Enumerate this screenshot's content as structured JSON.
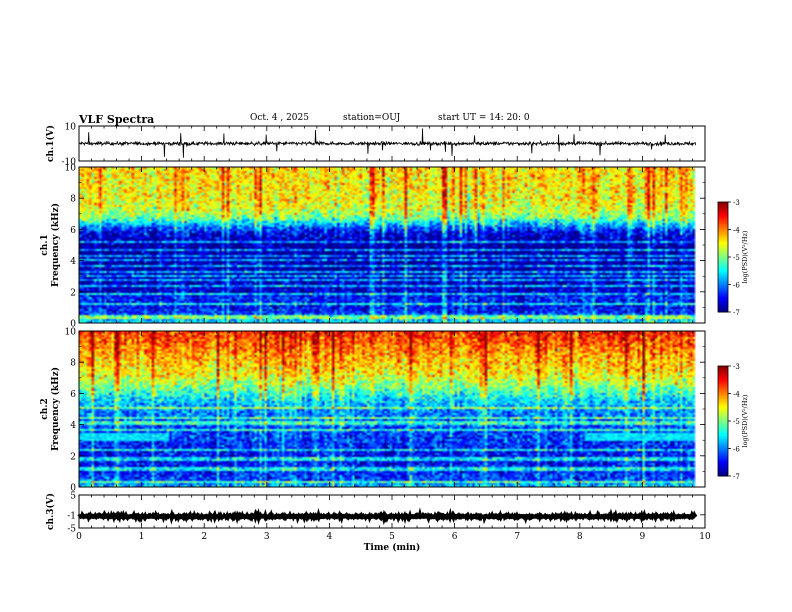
{
  "header": {
    "title": "VLF Spectra",
    "date": "Oct. 4 , 2025",
    "station": "station=OUJ",
    "start_ut": "start UT =  14: 20: 0"
  },
  "chart_data": [
    {
      "type": "line",
      "panel": "ch1-waveform",
      "ylabel": "ch.1(V)",
      "ylim": [
        -10,
        10
      ],
      "yticks": [
        "10",
        "-10"
      ],
      "xlim": [
        0,
        10
      ],
      "trace_mean": 0,
      "trace_noise_amplitude": 1.0,
      "trace_end": 9.85
    },
    {
      "type": "heatmap",
      "panel": "ch1-spectrogram",
      "ylabel": "ch.1 Frequency (kHz)",
      "ylim": [
        0,
        10
      ],
      "yticks": [
        "0",
        "2",
        "4",
        "6",
        "8",
        "10"
      ],
      "xlim": [
        0,
        10
      ],
      "data_end": 9.85,
      "colorbar": {
        "label": "log(PSD)(V²/Hz)",
        "ticks": [
          "-3",
          "-4",
          "-5",
          "-6",
          "-7"
        ],
        "range": [
          -7,
          -3
        ]
      },
      "spectral_profile": [
        {
          "f": 0.0,
          "v": -5.6
        },
        {
          "f": 0.3,
          "v": -5.8
        },
        {
          "f": 0.6,
          "v": -6.3
        },
        {
          "f": 1.0,
          "v": -6.5
        },
        {
          "f": 1.6,
          "v": -6.4
        },
        {
          "f": 2.0,
          "v": -6.7
        },
        {
          "f": 3.0,
          "v": -6.8
        },
        {
          "f": 4.0,
          "v": -6.9
        },
        {
          "f": 5.0,
          "v": -6.9
        },
        {
          "f": 5.8,
          "v": -6.6
        },
        {
          "f": 6.3,
          "v": -5.8
        },
        {
          "f": 6.8,
          "v": -5.0
        },
        {
          "f": 7.5,
          "v": -4.6
        },
        {
          "f": 8.5,
          "v": -4.5
        },
        {
          "f": 10.0,
          "v": -4.4
        }
      ],
      "line_bands_khz": [
        0.3,
        0.45,
        1.2,
        1.9,
        2.35,
        2.8,
        3.0,
        3.3,
        3.65,
        4.0,
        4.3,
        4.7,
        5.2
      ]
    },
    {
      "type": "heatmap",
      "panel": "ch2-spectrogram",
      "ylabel": "ch.2 Frequency (kHz)",
      "ylim": [
        0,
        10
      ],
      "yticks": [
        "0",
        "2",
        "4",
        "6",
        "8",
        "10"
      ],
      "xlim": [
        0,
        10
      ],
      "data_end": 9.85,
      "colorbar": {
        "label": "log(PSD)(V²/Hz)",
        "ticks": [
          "-3",
          "-4",
          "-5",
          "-6",
          "-7"
        ],
        "range": [
          -7,
          -3
        ]
      },
      "spectral_profile": [
        {
          "f": 0.0,
          "v": -5.6
        },
        {
          "f": 0.4,
          "v": -6.2
        },
        {
          "f": 1.0,
          "v": -6.4
        },
        {
          "f": 2.0,
          "v": -6.5
        },
        {
          "f": 3.0,
          "v": -6.3
        },
        {
          "f": 4.0,
          "v": -6.2
        },
        {
          "f": 5.0,
          "v": -5.9
        },
        {
          "f": 5.6,
          "v": -5.6
        },
        {
          "f": 6.4,
          "v": -5.0
        },
        {
          "f": 7.2,
          "v": -4.5
        },
        {
          "f": 8.3,
          "v": -4.2
        },
        {
          "f": 10.0,
          "v": -3.6
        }
      ],
      "line_bands_khz": [
        0.35,
        1.15,
        1.8,
        2.4,
        3.7,
        4.1,
        4.4,
        5.1
      ],
      "enhanced_band": {
        "f_low": 3.0,
        "f_high": 3.5,
        "level": -5.6,
        "intervals_min": [
          [
            0,
            1.45
          ],
          [
            8.1,
            9.85
          ]
        ]
      }
    },
    {
      "type": "line",
      "panel": "ch3-waveform",
      "ylabel": "ch.3(V)",
      "ylim": [
        -5,
        5
      ],
      "yticks": [
        "5",
        "-1",
        "-5"
      ],
      "xlim": [
        0,
        10
      ],
      "trace_mean": -1.5,
      "trace_noise_amplitude": 0.3,
      "trace_end": 9.85,
      "xlabel": "Time (min)",
      "xticks": [
        "0",
        "1",
        "2",
        "3",
        "4",
        "5",
        "6",
        "7",
        "8",
        "9",
        "10"
      ]
    }
  ]
}
